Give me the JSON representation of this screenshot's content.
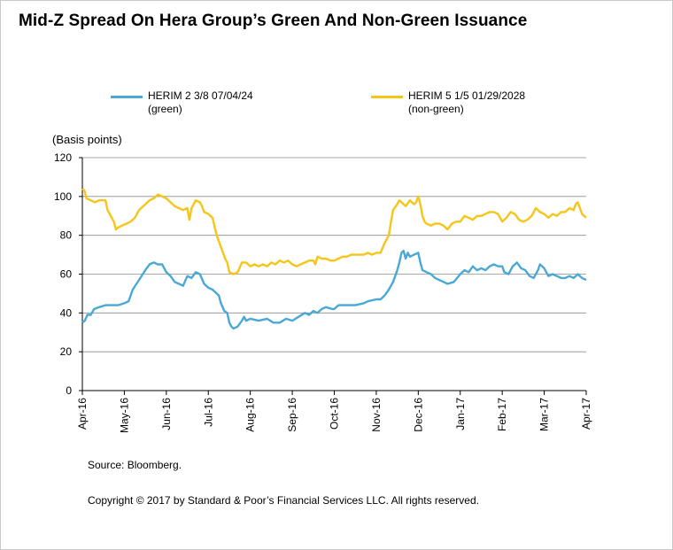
{
  "title": "Mid-Z Spread On Hera Group’s Green And Non-Green Issuance",
  "legend": [
    {
      "label": "HERIM 2 3/8 07/04/24",
      "sublabel": "(green)",
      "color": "#4aa8d6"
    },
    {
      "label": "HERIM 5 1/5 01/29/2028",
      "sublabel": "(non-green)",
      "color": "#f5c518"
    }
  ],
  "source": "Source: Bloomberg.",
  "copyright": "Copyright © 2017 by Standard & Poor’s Financial Services LLC. All rights reserved.",
  "chart_data": {
    "type": "line",
    "ylabel": "(Basis points)",
    "ylim": [
      0,
      120
    ],
    "yticks": [
      0,
      20,
      40,
      60,
      80,
      100,
      120
    ],
    "xlim": [
      0,
      12
    ],
    "xtick_labels": [
      "Apr-16",
      "May-16",
      "Jun-16",
      "Jul-16",
      "Aug-16",
      "Sep-16",
      "Oct-16",
      "Nov-16",
      "Dec-16",
      "Jan-17",
      "Feb-17",
      "Mar-17",
      "Apr-17"
    ],
    "grid": "horizontal",
    "series": [
      {
        "name": "HERIM 2 3/8 07/04/24 (green)",
        "color": "#4aa8d6",
        "points": [
          [
            0.0,
            35
          ],
          [
            0.06,
            36
          ],
          [
            0.12,
            39
          ],
          [
            0.2,
            39
          ],
          [
            0.28,
            42
          ],
          [
            0.4,
            43
          ],
          [
            0.55,
            44
          ],
          [
            0.7,
            44
          ],
          [
            0.85,
            44
          ],
          [
            1.0,
            45
          ],
          [
            1.1,
            46
          ],
          [
            1.2,
            52
          ],
          [
            1.35,
            57
          ],
          [
            1.5,
            62
          ],
          [
            1.6,
            65
          ],
          [
            1.7,
            66
          ],
          [
            1.8,
            65
          ],
          [
            1.9,
            65
          ],
          [
            2.0,
            61
          ],
          [
            2.1,
            59
          ],
          [
            2.2,
            56
          ],
          [
            2.3,
            55
          ],
          [
            2.4,
            54
          ],
          [
            2.5,
            59
          ],
          [
            2.6,
            58
          ],
          [
            2.7,
            61
          ],
          [
            2.8,
            60
          ],
          [
            2.9,
            55
          ],
          [
            3.0,
            53
          ],
          [
            3.1,
            52
          ],
          [
            3.25,
            49
          ],
          [
            3.3,
            45
          ],
          [
            3.38,
            41
          ],
          [
            3.45,
            40
          ],
          [
            3.5,
            35
          ],
          [
            3.55,
            33
          ],
          [
            3.6,
            32
          ],
          [
            3.7,
            33
          ],
          [
            3.8,
            36
          ],
          [
            3.85,
            38
          ],
          [
            3.9,
            36
          ],
          [
            4.0,
            37
          ],
          [
            4.2,
            36
          ],
          [
            4.4,
            37
          ],
          [
            4.55,
            35
          ],
          [
            4.7,
            35
          ],
          [
            4.85,
            37
          ],
          [
            5.0,
            36
          ],
          [
            5.15,
            38
          ],
          [
            5.3,
            40
          ],
          [
            5.4,
            39
          ],
          [
            5.5,
            41
          ],
          [
            5.6,
            40
          ],
          [
            5.7,
            42
          ],
          [
            5.8,
            43
          ],
          [
            5.95,
            42
          ],
          [
            6.0,
            42
          ],
          [
            6.1,
            44
          ],
          [
            6.3,
            44
          ],
          [
            6.5,
            44
          ],
          [
            6.7,
            45
          ],
          [
            6.8,
            46
          ],
          [
            7.0,
            47
          ],
          [
            7.1,
            47
          ],
          [
            7.2,
            49
          ],
          [
            7.3,
            52
          ],
          [
            7.4,
            56
          ],
          [
            7.5,
            62
          ],
          [
            7.55,
            66
          ],
          [
            7.6,
            71
          ],
          [
            7.65,
            72
          ],
          [
            7.7,
            68
          ],
          [
            7.75,
            71
          ],
          [
            7.8,
            69
          ],
          [
            7.9,
            70
          ],
          [
            8.0,
            71
          ],
          [
            8.05,
            66
          ],
          [
            8.1,
            62
          ],
          [
            8.2,
            61
          ],
          [
            8.3,
            60
          ],
          [
            8.4,
            58
          ],
          [
            8.5,
            57
          ],
          [
            8.6,
            56
          ],
          [
            8.7,
            55
          ],
          [
            8.85,
            56
          ],
          [
            9.0,
            60
          ],
          [
            9.1,
            62
          ],
          [
            9.2,
            61
          ],
          [
            9.3,
            64
          ],
          [
            9.4,
            62
          ],
          [
            9.5,
            63
          ],
          [
            9.6,
            62
          ],
          [
            9.7,
            64
          ],
          [
            9.8,
            65
          ],
          [
            9.9,
            64
          ],
          [
            10.0,
            64
          ],
          [
            10.05,
            61
          ],
          [
            10.15,
            60
          ],
          [
            10.25,
            64
          ],
          [
            10.35,
            66
          ],
          [
            10.45,
            63
          ],
          [
            10.55,
            62
          ],
          [
            10.65,
            59
          ],
          [
            10.75,
            58
          ],
          [
            10.85,
            62
          ],
          [
            10.9,
            65
          ],
          [
            11.0,
            63
          ],
          [
            11.1,
            59
          ],
          [
            11.2,
            60
          ],
          [
            11.3,
            59
          ],
          [
            11.4,
            58
          ],
          [
            11.5,
            58
          ],
          [
            11.6,
            59
          ],
          [
            11.7,
            58
          ],
          [
            11.8,
            60
          ],
          [
            11.9,
            58
          ],
          [
            12.0,
            57
          ]
        ]
      },
      {
        "name": "HERIM 5 1/5 01/29/2028 (non-green)",
        "color": "#f5c518",
        "points": [
          [
            0.0,
            104
          ],
          [
            0.05,
            103
          ],
          [
            0.1,
            99
          ],
          [
            0.2,
            98
          ],
          [
            0.3,
            97
          ],
          [
            0.4,
            98
          ],
          [
            0.5,
            98
          ],
          [
            0.55,
            98
          ],
          [
            0.6,
            93
          ],
          [
            0.7,
            89
          ],
          [
            0.75,
            87
          ],
          [
            0.8,
            83
          ],
          [
            0.85,
            84
          ],
          [
            0.95,
            85
          ],
          [
            1.05,
            86
          ],
          [
            1.15,
            87
          ],
          [
            1.25,
            89
          ],
          [
            1.35,
            93
          ],
          [
            1.45,
            95
          ],
          [
            1.55,
            97
          ],
          [
            1.6,
            98
          ],
          [
            1.7,
            99
          ],
          [
            1.8,
            101
          ],
          [
            1.9,
            100
          ],
          [
            2.0,
            99
          ],
          [
            2.1,
            97
          ],
          [
            2.2,
            95
          ],
          [
            2.3,
            94
          ],
          [
            2.4,
            93
          ],
          [
            2.5,
            94
          ],
          [
            2.55,
            88
          ],
          [
            2.6,
            94
          ],
          [
            2.7,
            98
          ],
          [
            2.8,
            97
          ],
          [
            2.85,
            95
          ],
          [
            2.9,
            92
          ],
          [
            3.0,
            91
          ],
          [
            3.1,
            89
          ],
          [
            3.2,
            80
          ],
          [
            3.3,
            74
          ],
          [
            3.4,
            68
          ],
          [
            3.45,
            66
          ],
          [
            3.5,
            61
          ],
          [
            3.6,
            60
          ],
          [
            3.7,
            61
          ],
          [
            3.8,
            66
          ],
          [
            3.9,
            66
          ],
          [
            4.0,
            64
          ],
          [
            4.1,
            65
          ],
          [
            4.2,
            64
          ],
          [
            4.3,
            65
          ],
          [
            4.4,
            64
          ],
          [
            4.5,
            66
          ],
          [
            4.6,
            65
          ],
          [
            4.7,
            67
          ],
          [
            4.8,
            66
          ],
          [
            4.9,
            67
          ],
          [
            5.0,
            65
          ],
          [
            5.1,
            64
          ],
          [
            5.2,
            65
          ],
          [
            5.3,
            66
          ],
          [
            5.4,
            67
          ],
          [
            5.5,
            67
          ],
          [
            5.55,
            65
          ],
          [
            5.6,
            69
          ],
          [
            5.7,
            68
          ],
          [
            5.8,
            68
          ],
          [
            5.9,
            67
          ],
          [
            6.0,
            67
          ],
          [
            6.1,
            68
          ],
          [
            6.2,
            69
          ],
          [
            6.3,
            69
          ],
          [
            6.4,
            70
          ],
          [
            6.5,
            70
          ],
          [
            6.6,
            70
          ],
          [
            6.7,
            70
          ],
          [
            6.8,
            71
          ],
          [
            6.9,
            70
          ],
          [
            7.0,
            71
          ],
          [
            7.1,
            71
          ],
          [
            7.2,
            76
          ],
          [
            7.3,
            80
          ],
          [
            7.35,
            87
          ],
          [
            7.4,
            93
          ],
          [
            7.5,
            96
          ],
          [
            7.55,
            98
          ],
          [
            7.6,
            97
          ],
          [
            7.7,
            95
          ],
          [
            7.8,
            98
          ],
          [
            7.9,
            96
          ],
          [
            7.95,
            97
          ],
          [
            8.0,
            100
          ],
          [
            8.05,
            96
          ],
          [
            8.1,
            90
          ],
          [
            8.15,
            87
          ],
          [
            8.2,
            86
          ],
          [
            8.3,
            85
          ],
          [
            8.4,
            86
          ],
          [
            8.5,
            86
          ],
          [
            8.6,
            85
          ],
          [
            8.7,
            83
          ],
          [
            8.8,
            86
          ],
          [
            8.9,
            87
          ],
          [
            9.0,
            87
          ],
          [
            9.1,
            90
          ],
          [
            9.2,
            89
          ],
          [
            9.3,
            88
          ],
          [
            9.4,
            90
          ],
          [
            9.5,
            90
          ],
          [
            9.6,
            91
          ],
          [
            9.7,
            92
          ],
          [
            9.8,
            92
          ],
          [
            9.9,
            91
          ],
          [
            10.0,
            87
          ],
          [
            10.1,
            89
          ],
          [
            10.2,
            92
          ],
          [
            10.3,
            91
          ],
          [
            10.4,
            88
          ],
          [
            10.5,
            87
          ],
          [
            10.6,
            88
          ],
          [
            10.7,
            90
          ],
          [
            10.8,
            94
          ],
          [
            10.9,
            92
          ],
          [
            11.0,
            91
          ],
          [
            11.1,
            89
          ],
          [
            11.2,
            91
          ],
          [
            11.3,
            90
          ],
          [
            11.4,
            92
          ],
          [
            11.5,
            92
          ],
          [
            11.6,
            94
          ],
          [
            11.7,
            93
          ],
          [
            11.75,
            96
          ],
          [
            11.8,
            97
          ],
          [
            11.85,
            94
          ],
          [
            11.9,
            91
          ],
          [
            12.0,
            89
          ]
        ]
      }
    ]
  }
}
